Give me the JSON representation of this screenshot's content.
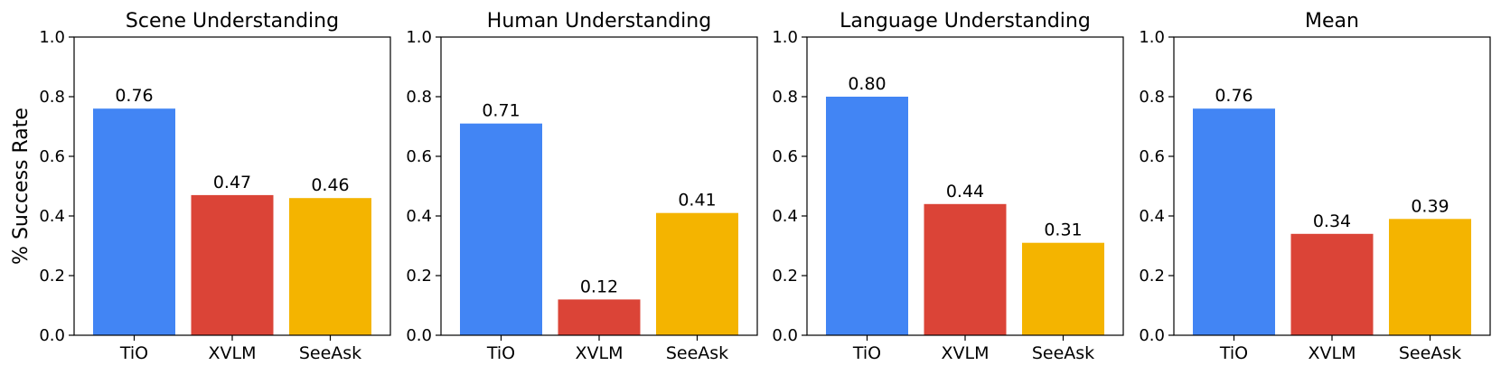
{
  "chart_data": [
    {
      "type": "bar",
      "title": "Scene Understanding",
      "ylabel": "% Success Rate",
      "xlabel": "",
      "categories": [
        "TiO",
        "XVLM",
        "SeeAsk"
      ],
      "values": [
        0.76,
        0.47,
        0.46
      ],
      "value_labels": [
        "0.76",
        "0.47",
        "0.46"
      ],
      "colors": [
        "#4285f4",
        "#db4437",
        "#f4b400"
      ],
      "ylim": [
        0,
        1.0
      ],
      "yticks": [
        "0.0",
        "0.2",
        "0.4",
        "0.6",
        "0.8",
        "1.0"
      ],
      "grid": false
    },
    {
      "type": "bar",
      "title": "Human Understanding",
      "ylabel": "",
      "xlabel": "",
      "categories": [
        "TiO",
        "XVLM",
        "SeeAsk"
      ],
      "values": [
        0.71,
        0.12,
        0.41
      ],
      "value_labels": [
        "0.71",
        "0.12",
        "0.41"
      ],
      "colors": [
        "#4285f4",
        "#db4437",
        "#f4b400"
      ],
      "ylim": [
        0,
        1.0
      ],
      "yticks": [
        "0.0",
        "0.2",
        "0.4",
        "0.6",
        "0.8",
        "1.0"
      ],
      "grid": false
    },
    {
      "type": "bar",
      "title": "Language Understanding",
      "ylabel": "",
      "xlabel": "",
      "categories": [
        "TiO",
        "XVLM",
        "SeeAsk"
      ],
      "values": [
        0.8,
        0.44,
        0.31
      ],
      "value_labels": [
        "0.80",
        "0.44",
        "0.31"
      ],
      "colors": [
        "#4285f4",
        "#db4437",
        "#f4b400"
      ],
      "ylim": [
        0,
        1.0
      ],
      "yticks": [
        "0.0",
        "0.2",
        "0.4",
        "0.6",
        "0.8",
        "1.0"
      ],
      "grid": false
    },
    {
      "type": "bar",
      "title": "Mean",
      "ylabel": "",
      "xlabel": "",
      "categories": [
        "TiO",
        "XVLM",
        "SeeAsk"
      ],
      "values": [
        0.76,
        0.34,
        0.39
      ],
      "value_labels": [
        "0.76",
        "0.34",
        "0.39"
      ],
      "colors": [
        "#4285f4",
        "#db4437",
        "#f4b400"
      ],
      "ylim": [
        0,
        1.0
      ],
      "yticks": [
        "0.0",
        "0.2",
        "0.4",
        "0.6",
        "0.8",
        "1.0"
      ],
      "grid": false
    }
  ]
}
